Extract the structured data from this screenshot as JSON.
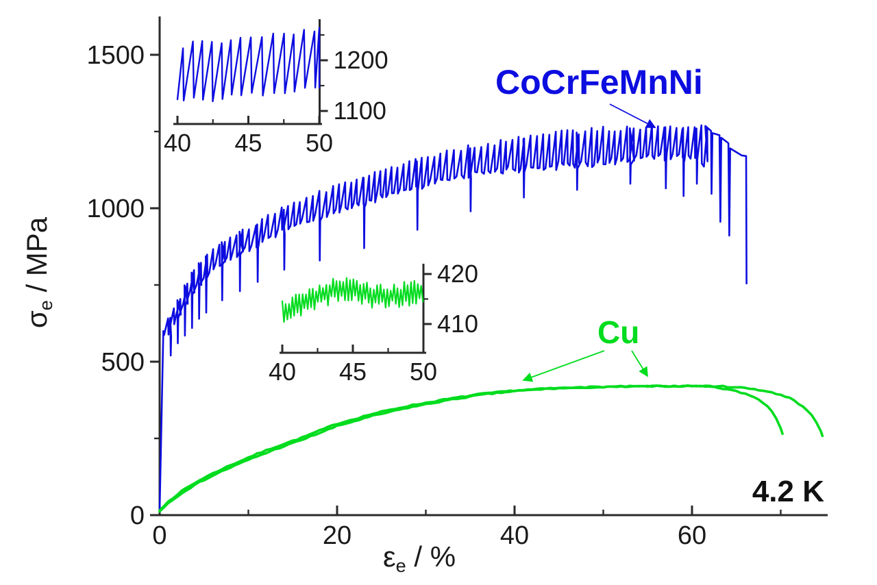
{
  "labels": {
    "alloy": "CoCrFeMnNi",
    "cu": "Cu",
    "temperature": "4.2 K"
  },
  "colors": {
    "alloy": "#0d0de0",
    "cu": "#00dc1e",
    "axis": "#2a2a2a",
    "text": "#1a1a1a",
    "background": "#ffffff"
  },
  "chart_data": {
    "type": "line",
    "title": "",
    "xlabel": {
      "symbol": "ε",
      "sub": "e",
      "rest": " / %"
    },
    "ylabel": {
      "symbol": "σ",
      "sub": "e",
      "rest": " / MPa"
    },
    "legend_position": "annotated-on-plot",
    "grid": false,
    "x_axis": {
      "range": [
        0,
        75.3
      ],
      "major_ticks": [
        0,
        20,
        40,
        60
      ],
      "minor_ticks": [
        10,
        30,
        50,
        70
      ],
      "unit": "%"
    },
    "y_axis": {
      "range": [
        0,
        1620
      ],
      "major_ticks": [
        0,
        500,
        1000,
        1500
      ],
      "minor_ticks": [
        250,
        750,
        1250
      ],
      "unit": "MPa"
    },
    "series": [
      {
        "name": "CoCrFeMnNi",
        "style": "serrated",
        "color": "#0d0de0",
        "elastic_segment": [
          [
            0,
            15
          ],
          [
            0.42,
            600
          ]
        ],
        "serration_period_pct": 0.7,
        "envelope": [
          [
            0.5,
            580,
            650
          ],
          [
            1,
            605,
            665
          ],
          [
            2,
            650,
            715
          ],
          [
            3,
            700,
            780
          ],
          [
            4,
            745,
            825
          ],
          [
            6,
            800,
            880
          ],
          [
            8,
            835,
            915
          ],
          [
            10,
            865,
            950
          ],
          [
            13,
            910,
            1000
          ],
          [
            16,
            945,
            1040
          ],
          [
            19,
            975,
            1075
          ],
          [
            22,
            1000,
            1105
          ],
          [
            25,
            1030,
            1135
          ],
          [
            28,
            1055,
            1160
          ],
          [
            31,
            1075,
            1185
          ],
          [
            34,
            1095,
            1205
          ],
          [
            37,
            1105,
            1220
          ],
          [
            40,
            1115,
            1235
          ],
          [
            43,
            1122,
            1248
          ],
          [
            46,
            1128,
            1258
          ],
          [
            49,
            1133,
            1265
          ],
          [
            52,
            1138,
            1272
          ],
          [
            55,
            1150,
            1278
          ],
          [
            58,
            1155,
            1275
          ],
          [
            60,
            1150,
            1272
          ],
          [
            61.5,
            1130,
            1270
          ]
        ],
        "deep_spikes": [
          [
            1.2,
            520
          ],
          [
            2.0,
            560
          ],
          [
            2.8,
            585
          ],
          [
            3.6,
            610
          ],
          [
            4.4,
            640
          ],
          [
            5.2,
            660
          ],
          [
            7,
            700
          ],
          [
            9,
            730
          ],
          [
            11,
            760
          ],
          [
            14,
            800
          ],
          [
            18,
            830
          ],
          [
            23,
            870
          ],
          [
            29,
            930
          ],
          [
            35,
            990
          ],
          [
            41,
            1035
          ],
          [
            47,
            1060
          ],
          [
            53,
            1080
          ],
          [
            57,
            1065
          ],
          [
            59,
            1040
          ],
          [
            60.5,
            1080
          ]
        ],
        "failure_tail": [
          [
            61.5,
            1268
          ],
          [
            62.15,
            1252
          ],
          [
            62.2,
            1047
          ],
          [
            62.3,
            1245
          ],
          [
            63.1,
            1238
          ],
          [
            63.2,
            956
          ],
          [
            63.3,
            1230
          ],
          [
            64.1,
            1212
          ],
          [
            64.2,
            911
          ],
          [
            64.3,
            1195
          ],
          [
            65.6,
            1172
          ],
          [
            66.1,
            1170
          ],
          [
            66.15,
            755
          ]
        ]
      },
      {
        "name": "Cu",
        "style": "smooth-pair",
        "color": "#00dc1e",
        "curves": [
          [
            [
              0,
              15
            ],
            [
              1,
              45
            ],
            [
              2,
              68
            ],
            [
              3,
              88
            ],
            [
              5,
              122
            ],
            [
              7,
              150
            ],
            [
              10,
              188
            ],
            [
              13,
              222
            ],
            [
              16,
              252
            ],
            [
              20,
              298
            ],
            [
              24,
              330
            ],
            [
              28,
              356
            ],
            [
              32,
              376
            ],
            [
              36,
              394
            ],
            [
              40,
              406
            ],
            [
              44,
              413
            ],
            [
              48,
              417
            ],
            [
              52,
              419
            ],
            [
              56,
              420
            ],
            [
              60,
              420
            ],
            [
              62,
              418
            ],
            [
              64,
              410
            ],
            [
              66,
              396
            ],
            [
              67.5,
              378
            ],
            [
              68.8,
              348
            ],
            [
              69.8,
              300
            ],
            [
              70.2,
              265
            ]
          ],
          [
            [
              0,
              12
            ],
            [
              1,
              40
            ],
            [
              2,
              62
            ],
            [
              3,
              82
            ],
            [
              5,
              115
            ],
            [
              7,
              143
            ],
            [
              10,
              180
            ],
            [
              13,
              214
            ],
            [
              16,
              245
            ],
            [
              20,
              290
            ],
            [
              24,
              323
            ],
            [
              28,
              350
            ],
            [
              32,
              372
            ],
            [
              36,
              391
            ],
            [
              40,
              404
            ],
            [
              44,
              412
            ],
            [
              48,
              416
            ],
            [
              52,
              418
            ],
            [
              56,
              420
            ],
            [
              60,
              421
            ],
            [
              63,
              420
            ],
            [
              65,
              417
            ],
            [
              67,
              411
            ],
            [
              69,
              400
            ],
            [
              71,
              382
            ],
            [
              72.5,
              355
            ],
            [
              73.7,
              318
            ],
            [
              74.4,
              283
            ],
            [
              74.7,
              258
            ]
          ]
        ]
      }
    ],
    "insets": [
      {
        "series": "CoCrFeMnNi",
        "x_range": [
          40,
          50
        ],
        "x_major_ticks": [
          40,
          45,
          50
        ],
        "x_minor_ticks": [
          42.5,
          47.5
        ],
        "y_major_ticks": [
          1100,
          1200
        ],
        "y_minor_ticks": [
          1150,
          1250
        ],
        "serration_period_pct": 0.7,
        "envelope_low": [
          [
            40,
            1113
          ],
          [
            50,
            1138
          ]
        ],
        "envelope_high": [
          [
            40,
            1235
          ],
          [
            50,
            1268
          ]
        ]
      },
      {
        "series": "Cu",
        "x_range": [
          40,
          50
        ],
        "x_major_ticks": [
          40,
          45,
          50
        ],
        "x_minor_ticks": [
          42.5,
          47.5
        ],
        "y_major_ticks": [
          410,
          420
        ],
        "y_minor_ticks": [
          415
        ],
        "noise_amplitude": 2.6,
        "mean": [
          [
            40,
            412.5
          ],
          [
            41.5,
            414
          ],
          [
            43,
            416
          ],
          [
            44,
            417.2
          ],
          [
            45,
            417
          ],
          [
            46,
            415.8
          ],
          [
            47,
            415.3
          ],
          [
            48,
            415.8
          ],
          [
            49,
            416
          ],
          [
            50,
            416.3
          ]
        ]
      }
    ],
    "annotations": [
      {
        "text": "CoCrFeMnNi",
        "color": "#0d0de0",
        "points_to": "serrated curve near 56% strain"
      },
      {
        "text": "Cu",
        "color": "#00dc1e",
        "points_to": "both Cu curves near plateau"
      },
      {
        "text": "4.2 K",
        "color": "#111111",
        "meaning": "test temperature"
      }
    ]
  }
}
